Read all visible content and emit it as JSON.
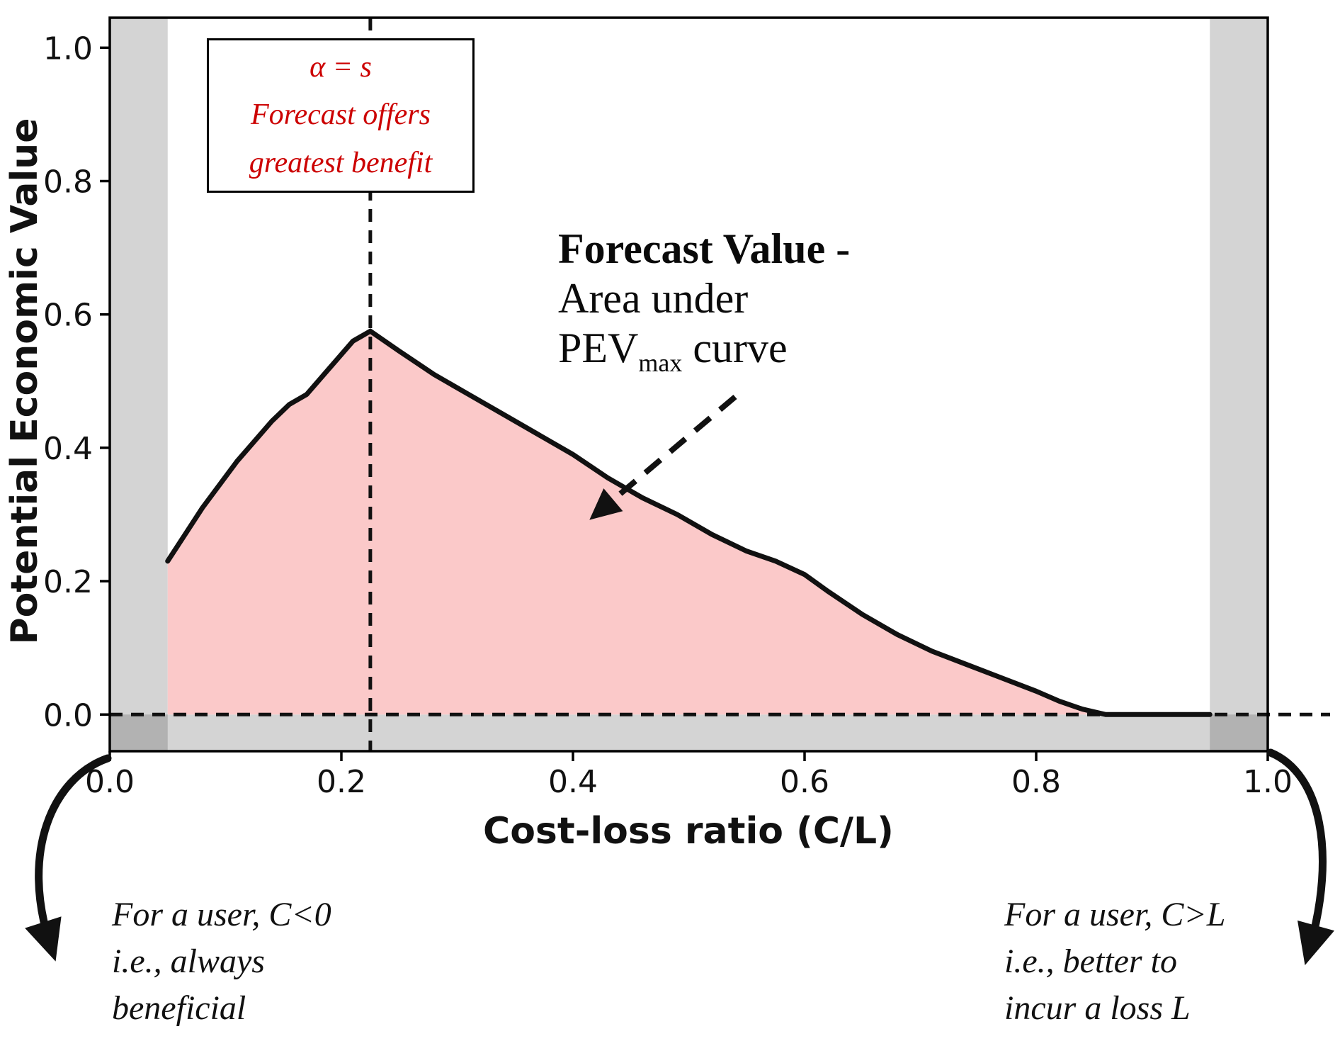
{
  "figure": {
    "x_axis_label": "Cost-loss ratio (C/L)",
    "y_axis_label": "Potential Economic Value"
  },
  "annotations": {
    "alpha_box": {
      "lines": [
        "α = s",
        "Forecast offers",
        "greatest benefit"
      ],
      "text_color": "#cc0000"
    },
    "forecast_value": {
      "line1": "Forecast Value -",
      "line2": "Area under",
      "line3_prefix": "PEV",
      "line3_sub": "max",
      "line3_suffix": " curve"
    },
    "bottom_left": {
      "lines": [
        "For a user, C<0",
        "i.e., always",
        "beneficial"
      ]
    },
    "bottom_right": {
      "lines": [
        "For a user, C>L",
        "i.e., better to",
        "incur a loss L"
      ]
    }
  },
  "chart_data": {
    "type": "area",
    "title": "",
    "xlabel": "Cost-loss ratio (C/L)",
    "ylabel": "Potential Economic Value",
    "xlim": [
      0.0,
      1.0
    ],
    "ylim": [
      -0.055,
      1.045
    ],
    "x_ticks": [
      0.0,
      0.2,
      0.4,
      0.6,
      0.8,
      1.0
    ],
    "y_ticks": [
      0.0,
      0.2,
      0.4,
      0.6,
      0.8,
      1.0
    ],
    "grid": false,
    "legend": "none",
    "series": [
      {
        "name": "PEV_max",
        "x": [
          0.05,
          0.08,
          0.11,
          0.14,
          0.155,
          0.17,
          0.19,
          0.21,
          0.225,
          0.25,
          0.28,
          0.31,
          0.34,
          0.37,
          0.4,
          0.43,
          0.46,
          0.49,
          0.52,
          0.55,
          0.575,
          0.6,
          0.62,
          0.65,
          0.68,
          0.71,
          0.74,
          0.77,
          0.8,
          0.82,
          0.84,
          0.86,
          0.9,
          0.95
        ],
        "y": [
          0.23,
          0.31,
          0.38,
          0.44,
          0.465,
          0.48,
          0.52,
          0.56,
          0.575,
          0.545,
          0.51,
          0.48,
          0.45,
          0.42,
          0.39,
          0.355,
          0.325,
          0.3,
          0.27,
          0.245,
          0.23,
          0.21,
          0.185,
          0.15,
          0.12,
          0.095,
          0.075,
          0.055,
          0.035,
          0.02,
          0.008,
          0.0,
          0.0,
          0.0
        ]
      }
    ],
    "optimal_cost_loss_ratio": 0.225,
    "zero_value_line_y": 0.0,
    "shaded_bands_x": [
      {
        "x0": 0.0,
        "x1": 0.05
      },
      {
        "x0": 0.95,
        "x1": 1.0
      }
    ],
    "below_zero_band": {
      "y0": -0.055,
      "y1": 0.0
    },
    "colors": {
      "area_fill": "#fbc9c9",
      "curve": "#111111",
      "band": "rgba(60,60,60,0.22)",
      "dashed": "#111111"
    }
  }
}
